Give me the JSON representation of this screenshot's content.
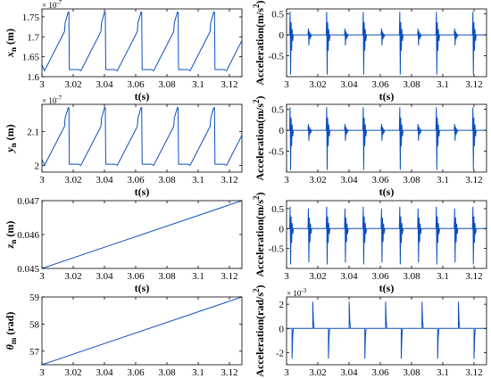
{
  "chart_data": [
    {
      "type": "line",
      "id": "xn",
      "ylabel": "x_n (m)",
      "xlabel": "t(s)",
      "xlim": [
        3,
        3.128
      ],
      "xticks": [
        "3",
        "3.02",
        "3.04",
        "3.06",
        "3.08",
        "3.1",
        "3.12"
      ],
      "ylim": [
        1.6e-07,
        1.77e-07
      ],
      "yticks": [
        "1.6",
        "1.65",
        "1.7",
        "1.75"
      ],
      "ytick_values": [
        1.6e-07,
        1.65e-07,
        1.7e-07,
        1.75e-07
      ],
      "exponent_label": "× 10",
      "exponent": "-7",
      "series": [
        {
          "sawtooth": {
            "t0": 3.0,
            "period": 0.0233,
            "min": 1.615e-07,
            "max": 1.762e-07,
            "dip": 1.735e-07
          }
        }
      ]
    },
    {
      "type": "line",
      "id": "ax",
      "ylabel": "Acceleration(m/s^2)",
      "xlabel": "t(s)",
      "xlim": [
        3,
        3.128
      ],
      "xticks": [
        "3",
        "3.02",
        "3.04",
        "3.06",
        "3.08",
        "3.1",
        "3.12"
      ],
      "ylim": [
        -1,
        0.62
      ],
      "yticks": [
        "0.5",
        "0",
        "-0.5"
      ],
      "ytick_values": [
        0.5,
        0,
        -0.5
      ],
      "series": [
        {
          "spikes": {
            "t0": 3.002,
            "spacing": 0.0117,
            "big_amp": [
              0.55,
              -0.95
            ],
            "small_amp": [
              0.15,
              -0.25
            ]
          }
        }
      ]
    },
    {
      "type": "line",
      "id": "yn",
      "ylabel": "y_n (m)",
      "xlabel": "t(s)",
      "xlim": [
        3,
        3.128
      ],
      "xticks": [
        "3",
        "3.02",
        "3.04",
        "3.06",
        "3.08",
        "3.1",
        "3.12"
      ],
      "ylim": [
        1.98e-07,
        2.18e-07
      ],
      "yticks": [
        "2",
        "2.1"
      ],
      "ytick_values": [
        2e-07,
        2.1e-07
      ],
      "exponent_label": "× 10",
      "exponent": "-7",
      "series": [
        {
          "sawtooth": {
            "t0": 3.0,
            "period": 0.0233,
            "min": 2e-07,
            "max": 2.17e-07,
            "dip": 2.14e-07
          }
        }
      ]
    },
    {
      "type": "line",
      "id": "ay",
      "ylabel": "Acceleration(m/s^2)",
      "xlabel": "t(s)",
      "xlim": [
        3,
        3.128
      ],
      "xticks": [
        "3",
        "3.02",
        "3.04",
        "3.06",
        "3.08",
        "3.1",
        "3.12"
      ],
      "ylim": [
        -1,
        0.62
      ],
      "yticks": [
        "0.5",
        "0",
        "-0.5"
      ],
      "ytick_values": [
        0.5,
        0,
        -0.5
      ],
      "series": [
        {
          "spikes": {
            "t0": 3.002,
            "spacing": 0.0117,
            "big_amp": [
              0.55,
              -0.95
            ],
            "small_amp": [
              0.15,
              -0.25
            ]
          }
        }
      ]
    },
    {
      "type": "line",
      "id": "zn",
      "ylabel": "z_n (m)",
      "xlabel": "t(s)",
      "xlim": [
        3,
        3.128
      ],
      "xticks": [
        "3",
        "3.02",
        "3.04",
        "3.06",
        "3.08",
        "3.1",
        "3.12"
      ],
      "ylim": [
        0.045,
        0.047
      ],
      "yticks": [
        "0.047",
        "0.046",
        "0.045"
      ],
      "ytick_values": [
        0.047,
        0.046,
        0.045
      ],
      "series": [
        {
          "line": [
            [
              3.0,
              0.045
            ],
            [
              3.128,
              0.047
            ]
          ]
        }
      ]
    },
    {
      "type": "line",
      "id": "az",
      "ylabel": "Acceleration(m/s^2)",
      "xlabel": "t(s)",
      "xlim": [
        3,
        3.128
      ],
      "xticks": [
        "3",
        "3.02",
        "3.04",
        "3.06",
        "3.08",
        "3.1",
        "3.12"
      ],
      "ylim": [
        -1,
        0.7
      ],
      "yticks": [
        "0.5",
        "0",
        "-0.5"
      ],
      "ytick_values": [
        0.5,
        0,
        -0.5
      ],
      "series": [
        {
          "spikes": {
            "t0": 3.002,
            "spacing": 0.0117,
            "big_amp": [
              0.55,
              -0.9
            ],
            "small_amp": [
              0.5,
              -0.85
            ]
          }
        }
      ]
    },
    {
      "type": "line",
      "id": "theta",
      "ylabel": "θ_m (rad)",
      "xlabel": "t(s)",
      "xlim": [
        3,
        3.128
      ],
      "xticks": [
        "3",
        "3.02",
        "3.04",
        "3.06",
        "3.08",
        "3.1",
        "3.12"
      ],
      "ylim": [
        56.5,
        59
      ],
      "yticks": [
        "59",
        "58",
        "57"
      ],
      "ytick_values": [
        59,
        58,
        57
      ],
      "series": [
        {
          "line": [
            [
              3.0,
              56.5
            ],
            [
              3.128,
              59.0
            ]
          ]
        }
      ]
    },
    {
      "type": "line",
      "id": "atheta",
      "ylabel": "Acceleration(rad/s^2)",
      "xlabel": "t(s)",
      "xlim": [
        3,
        3.128
      ],
      "xticks": [
        "3",
        "3.02",
        "3.04",
        "3.06",
        "3.08",
        "3.1",
        "3.12"
      ],
      "ylim": [
        -0.003,
        0.0026
      ],
      "yticks": [
        "2",
        "0",
        "-2"
      ],
      "ytick_values": [
        0.002,
        0,
        -0.002
      ],
      "exponent_label": "× 10",
      "exponent": "-3",
      "series": [
        {
          "pulses": {
            "t0": 3.0,
            "period": 0.0233,
            "hi": 0.0022,
            "lo": -0.0025
          }
        }
      ]
    }
  ],
  "colors": {
    "line": "#0b4fbf",
    "axis": "#000000"
  }
}
